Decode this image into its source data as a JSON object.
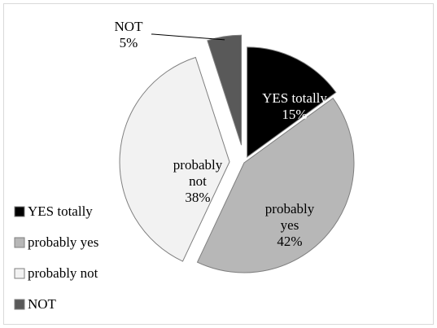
{
  "chart_data": {
    "type": "pie",
    "title": "",
    "legend_position": "left",
    "slices": [
      {
        "name": "YES totally",
        "value": 15,
        "label": "YES totally|15%",
        "color": "#000000",
        "label_color": "#ffffff"
      },
      {
        "name": "probably yes",
        "value": 42,
        "label": "probably|yes|42%",
        "color": "#b7b7b7",
        "label_color": "#000000"
      },
      {
        "name": "probably not",
        "value": 38,
        "label": "probably|not|38%",
        "color": "#f2f2f2",
        "label_color": "#000000"
      },
      {
        "name": "NOT",
        "value": 5,
        "label": "NOT|5%",
        "color": "#595959",
        "label_color": "#000000"
      }
    ]
  }
}
